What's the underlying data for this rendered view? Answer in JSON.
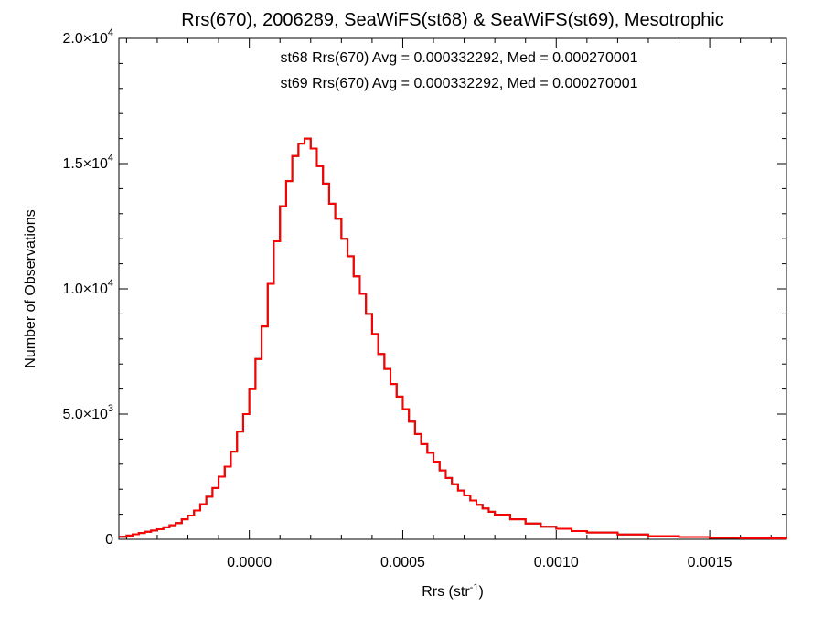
{
  "chart_data": {
    "type": "line",
    "title": "Rrs(670), 2006289, SeaWiFS(st68) & SeaWiFS(st69), Mesotrophic",
    "xlabel": "Rrs (str",
    "xlabel_sup": "-1",
    "xlabel_suffix": ")",
    "ylabel": "Number of Observations",
    "xlim": [
      -0.000425,
      0.00175
    ],
    "ylim": [
      0,
      20000
    ],
    "x_ticks": [
      0.0,
      0.0005,
      0.001,
      0.0015
    ],
    "x_tick_labels": [
      "0.0000",
      "0.0005",
      "0.0010",
      "0.0015"
    ],
    "y_ticks": [
      0,
      5000,
      10000,
      15000,
      20000
    ],
    "y_tick_labels": [
      {
        "base": "0",
        "exp": ""
      },
      {
        "base": "5.0×10",
        "exp": "3"
      },
      {
        "base": "1.0×10",
        "exp": "4"
      },
      {
        "base": "1.5×10",
        "exp": "4"
      },
      {
        "base": "2.0×10",
        "exp": "4"
      }
    ],
    "annotations": [
      {
        "text": "st68 Rrs(670) Avg = 0.000332292, Med = 0.000270001",
        "color": "#000000"
      },
      {
        "text": "st69 Rrs(670) Avg = 0.000332292, Med = 0.000270001",
        "color": "#ff0000"
      }
    ],
    "grid": false,
    "series": [
      {
        "name": "st68",
        "color": "#000000",
        "step": true,
        "x": [
          -0.000425,
          -0.0004,
          -0.00038,
          -0.00036,
          -0.00034,
          -0.00032,
          -0.0003,
          -0.00028,
          -0.00026,
          -0.00024,
          -0.00022,
          -0.0002,
          -0.00018,
          -0.00016,
          -0.00014,
          -0.00012,
          -0.0001,
          -8e-05,
          -6e-05,
          -4e-05,
          -2e-05,
          0.0,
          2e-05,
          4e-05,
          6e-05,
          8e-05,
          0.0001,
          0.00012,
          0.00014,
          0.00016,
          0.00018,
          0.0002,
          0.00022,
          0.00024,
          0.00026,
          0.00028,
          0.0003,
          0.00032,
          0.00034,
          0.00036,
          0.00038,
          0.0004,
          0.00042,
          0.00044,
          0.00046,
          0.00048,
          0.0005,
          0.00052,
          0.00054,
          0.00056,
          0.00058,
          0.0006,
          0.00062,
          0.00064,
          0.00066,
          0.00068,
          0.0007,
          0.00072,
          0.00074,
          0.00076,
          0.00078,
          0.0008,
          0.00085,
          0.0009,
          0.00095,
          0.001,
          0.00105,
          0.0011,
          0.0012,
          0.0013,
          0.0014,
          0.0015,
          0.0016,
          0.0017,
          0.00175
        ],
        "y": [
          100,
          150,
          200,
          250,
          300,
          350,
          400,
          480,
          560,
          650,
          800,
          950,
          1150,
          1400,
          1700,
          2050,
          2500,
          2900,
          3500,
          4300,
          5000,
          6000,
          7200,
          8500,
          10200,
          11900,
          13300,
          14300,
          15300,
          15800,
          16000,
          15600,
          14900,
          14200,
          13400,
          12800,
          12000,
          11300,
          10500,
          9800,
          9000,
          8200,
          7400,
          6800,
          6200,
          5700,
          5200,
          4700,
          4200,
          3800,
          3450,
          3100,
          2750,
          2450,
          2200,
          1950,
          1750,
          1550,
          1380,
          1230,
          1100,
          980,
          800,
          630,
          500,
          420,
          330,
          270,
          190,
          130,
          90,
          60,
          40,
          30,
          20
        ]
      },
      {
        "name": "st69",
        "color": "#ff0000",
        "step": true,
        "x": [
          -0.000425,
          -0.0004,
          -0.00038,
          -0.00036,
          -0.00034,
          -0.00032,
          -0.0003,
          -0.00028,
          -0.00026,
          -0.00024,
          -0.00022,
          -0.0002,
          -0.00018,
          -0.00016,
          -0.00014,
          -0.00012,
          -0.0001,
          -8e-05,
          -6e-05,
          -4e-05,
          -2e-05,
          0.0,
          2e-05,
          4e-05,
          6e-05,
          8e-05,
          0.0001,
          0.00012,
          0.00014,
          0.00016,
          0.00018,
          0.0002,
          0.00022,
          0.00024,
          0.00026,
          0.00028,
          0.0003,
          0.00032,
          0.00034,
          0.00036,
          0.00038,
          0.0004,
          0.00042,
          0.00044,
          0.00046,
          0.00048,
          0.0005,
          0.00052,
          0.00054,
          0.00056,
          0.00058,
          0.0006,
          0.00062,
          0.00064,
          0.00066,
          0.00068,
          0.0007,
          0.00072,
          0.00074,
          0.00076,
          0.00078,
          0.0008,
          0.00085,
          0.0009,
          0.00095,
          0.001,
          0.00105,
          0.0011,
          0.0012,
          0.0013,
          0.0014,
          0.0015,
          0.0016,
          0.0017,
          0.00175
        ],
        "y": [
          100,
          150,
          200,
          250,
          300,
          350,
          400,
          480,
          560,
          650,
          800,
          950,
          1150,
          1400,
          1700,
          2050,
          2500,
          2900,
          3500,
          4300,
          5000,
          6000,
          7200,
          8500,
          10200,
          11900,
          13300,
          14300,
          15300,
          15800,
          16000,
          15600,
          14900,
          14200,
          13400,
          12800,
          12000,
          11300,
          10500,
          9800,
          9000,
          8200,
          7400,
          6800,
          6200,
          5700,
          5200,
          4700,
          4200,
          3800,
          3450,
          3100,
          2750,
          2450,
          2200,
          1950,
          1750,
          1550,
          1380,
          1230,
          1100,
          980,
          800,
          630,
          500,
          420,
          330,
          270,
          190,
          130,
          90,
          60,
          40,
          30,
          20
        ]
      }
    ]
  }
}
